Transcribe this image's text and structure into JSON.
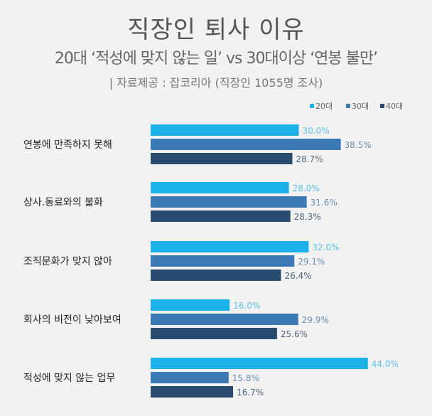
{
  "chart_data": {
    "type": "bar",
    "orientation": "horizontal",
    "title": "직장인 퇴사 이유",
    "subtitle": "20대 ‘적성에 맞지 않는 일’ vs 30대이상 ‘연봉 불만’",
    "source": "| 자료제공 : 잡코리아 (직장인 1055명 조사)",
    "categories": [
      "연봉에 만족하지 못해",
      "상사.동료와의 불화",
      "조직문화가 맞지 않아",
      "회사의 비전이 낮아보여",
      "적성에 맞지 않는 업무"
    ],
    "series": [
      {
        "name": "20대",
        "color": "#1cb1e9",
        "label_color": "#5cc3ea",
        "values": [
          30.0,
          28.0,
          32.0,
          16.0,
          44.0
        ]
      },
      {
        "name": "30대",
        "color": "#3c79b7",
        "label_color": "#6d8fb5",
        "values": [
          38.5,
          31.6,
          29.1,
          29.9,
          15.8
        ]
      },
      {
        "name": "40대",
        "color": "#294b70",
        "label_color": "#52667d",
        "values": [
          28.7,
          28.3,
          26.4,
          25.6,
          16.7
        ]
      }
    ],
    "value_suffix": "%",
    "legend_position": "top-right",
    "xlim": [
      0,
      50
    ],
    "grid": false
  }
}
